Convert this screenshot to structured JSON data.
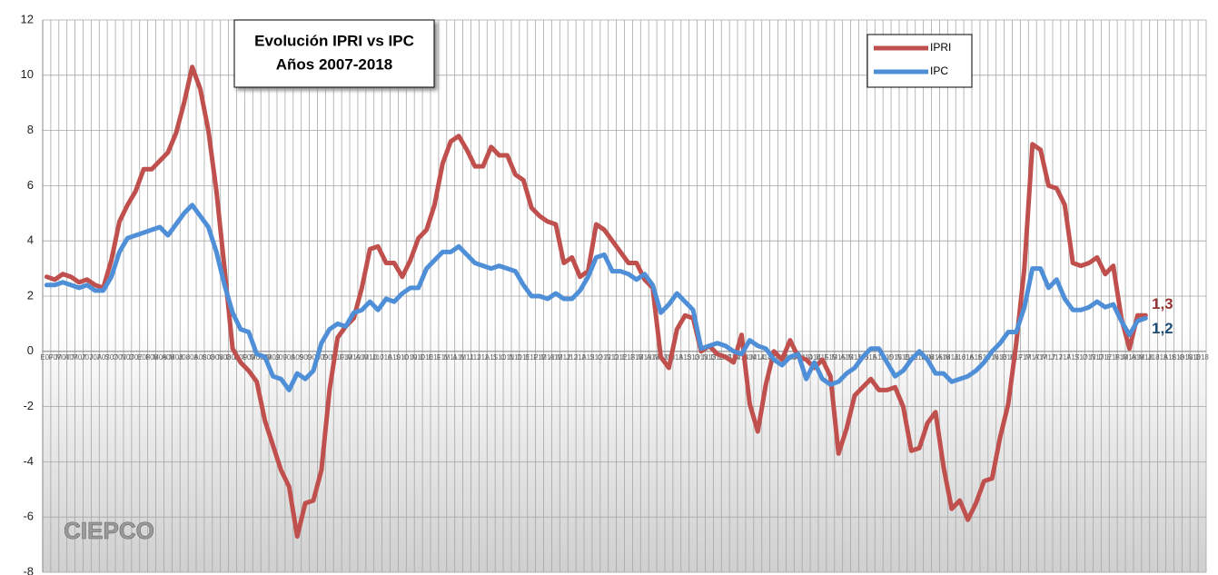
{
  "chart_data": {
    "type": "line",
    "title": [
      "Evolución IPRI vs IPC",
      "Años 2007-2018"
    ],
    "logo": "CIEPCO",
    "categories": [
      "E07",
      "F07",
      "M07",
      "A07",
      "M07",
      "J07",
      "J07",
      "A07",
      "S07",
      "O07",
      "N07",
      "D07",
      "E08",
      "F08",
      "M08",
      "A08",
      "M08",
      "J08",
      "J08",
      "A08",
      "S08",
      "O08",
      "N08",
      "D08",
      "E09",
      "F09",
      "M09",
      "A09",
      "M09",
      "J09",
      "J09",
      "A09",
      "S09",
      "O09",
      "N09",
      "D09",
      "E10",
      "F10",
      "M10",
      "A10",
      "M10",
      "J10",
      "J10",
      "A10",
      "S10",
      "O10",
      "N10",
      "D10",
      "E11",
      "F11",
      "M11",
      "A11",
      "M11",
      "J11",
      "J11",
      "A11",
      "S11",
      "O11",
      "N11",
      "D11",
      "E12",
      "F12",
      "M12",
      "A12",
      "M12",
      "J12",
      "J12",
      "A12",
      "S12",
      "O12",
      "N12",
      "D12",
      "E13",
      "F13",
      "M13",
      "A13",
      "M13",
      "J13",
      "J13",
      "A13",
      "S13",
      "O13",
      "N13",
      "D13",
      "E14",
      "F14",
      "M14",
      "A14",
      "M14",
      "J14",
      "J14",
      "A14",
      "S14",
      "O14",
      "N14",
      "D14",
      "E15",
      "F15",
      "M15",
      "A15",
      "M15",
      "J15",
      "J15",
      "A15",
      "S15",
      "O15",
      "N15",
      "D15",
      "E16",
      "F16",
      "M16",
      "A16",
      "M16",
      "J16",
      "J16",
      "A16",
      "S16",
      "O16",
      "N16",
      "D16",
      "E17",
      "F17",
      "M17",
      "A17",
      "M17",
      "J17",
      "J17",
      "A17",
      "S17",
      "O17",
      "N17",
      "D17",
      "E18",
      "F18",
      "M18",
      "A18",
      "M18",
      "J18",
      "J18",
      "A18",
      "S18",
      "O18",
      "N18",
      "D18"
    ],
    "series": [
      {
        "name": "IPRI",
        "color": "#c0504d",
        "label_color": "#953735",
        "last_label": "1,3",
        "values": [
          2.7,
          2.6,
          2.8,
          2.7,
          2.5,
          2.6,
          2.4,
          2.3,
          3.3,
          4.7,
          5.3,
          5.8,
          6.6,
          6.6,
          6.9,
          7.2,
          7.9,
          9.0,
          10.3,
          9.5,
          8.0,
          5.8,
          3.0,
          0.1,
          -0.4,
          -0.7,
          -1.1,
          -2.5,
          -3.4,
          -4.3,
          -4.9,
          -6.7,
          -5.5,
          -5.4,
          -4.3,
          -1.4,
          0.5,
          0.9,
          1.2,
          2.3,
          3.7,
          3.8,
          3.2,
          3.2,
          2.7,
          3.3,
          4.1,
          4.4,
          5.3,
          6.8,
          7.6,
          7.8,
          7.3,
          6.7,
          6.7,
          7.4,
          7.1,
          7.1,
          6.4,
          6.2,
          5.2,
          4.9,
          4.7,
          4.6,
          3.2,
          3.4,
          2.7,
          2.9,
          4.6,
          4.4,
          4.0,
          3.6,
          3.2,
          3.2,
          2.6,
          2.3,
          -0.2,
          -0.6,
          0.8,
          1.3,
          1.2,
          0.0,
          0.2,
          -0.1,
          -0.2,
          -0.4,
          0.6,
          -1.9,
          -2.9,
          -1.2,
          0.0,
          -0.3,
          0.4,
          -0.2,
          -0.3,
          -0.6,
          -0.3,
          -0.9,
          -3.7,
          -2.8,
          -1.6,
          -1.3,
          -1.0,
          -1.4,
          -1.4,
          -1.3,
          -2.0,
          -3.6,
          -3.5,
          -2.6,
          -2.2,
          -4.2,
          -5.7,
          -5.4,
          -6.1,
          -5.5,
          -4.7,
          -4.6,
          -3.1,
          -1.9,
          0.3,
          3.0,
          7.5,
          7.3,
          6.0,
          5.9,
          5.3,
          3.2,
          3.1,
          3.2,
          3.4,
          2.8,
          3.1,
          1.2,
          0.1,
          1.3,
          1.3,
          null,
          null,
          null,
          null,
          null,
          null,
          null
        ]
      },
      {
        "name": "IPC",
        "color": "#4f8fd8",
        "label_color": "#1f4e79",
        "last_label": "1,2",
        "values": [
          2.4,
          2.4,
          2.5,
          2.4,
          2.3,
          2.4,
          2.2,
          2.2,
          2.7,
          3.6,
          4.1,
          4.2,
          4.3,
          4.4,
          4.5,
          4.2,
          4.6,
          5.0,
          5.3,
          4.9,
          4.5,
          3.6,
          2.4,
          1.4,
          0.8,
          0.7,
          -0.1,
          -0.2,
          -0.9,
          -1.0,
          -1.4,
          -0.8,
          -1.0,
          -0.7,
          0.3,
          0.8,
          1.0,
          0.9,
          1.4,
          1.5,
          1.8,
          1.5,
          1.9,
          1.8,
          2.1,
          2.3,
          2.3,
          3.0,
          3.3,
          3.6,
          3.6,
          3.8,
          3.5,
          3.2,
          3.1,
          3.0,
          3.1,
          3.0,
          2.9,
          2.4,
          2.0,
          2.0,
          1.9,
          2.1,
          1.9,
          1.9,
          2.2,
          2.7,
          3.4,
          3.5,
          2.9,
          2.9,
          2.8,
          2.6,
          2.8,
          2.4,
          1.4,
          1.7,
          2.1,
          1.8,
          1.5,
          0.1,
          0.2,
          0.3,
          0.2,
          0.0,
          -0.1,
          0.4,
          0.2,
          0.1,
          -0.3,
          -0.5,
          -0.2,
          -0.1,
          -1.0,
          -0.4,
          -1.0,
          -1.2,
          -1.1,
          -0.8,
          -0.6,
          -0.2,
          0.1,
          0.1,
          -0.4,
          -0.9,
          -0.7,
          -0.3,
          0.0,
          -0.3,
          -0.8,
          -0.8,
          -1.1,
          -1.0,
          -0.9,
          -0.7,
          -0.4,
          0.0,
          0.3,
          0.7,
          0.7,
          1.6,
          3.0,
          3.0,
          2.3,
          2.6,
          1.9,
          1.5,
          1.5,
          1.6,
          1.8,
          1.6,
          1.7,
          1.1,
          0.6,
          1.1,
          1.2,
          null,
          null,
          null,
          null,
          null,
          null,
          null
        ]
      }
    ],
    "ylim": [
      -8,
      12
    ],
    "yticks": [
      -8,
      -6,
      -4,
      -2,
      0,
      2,
      4,
      6,
      8,
      10,
      12
    ],
    "grid": true,
    "legend": "upper right"
  }
}
